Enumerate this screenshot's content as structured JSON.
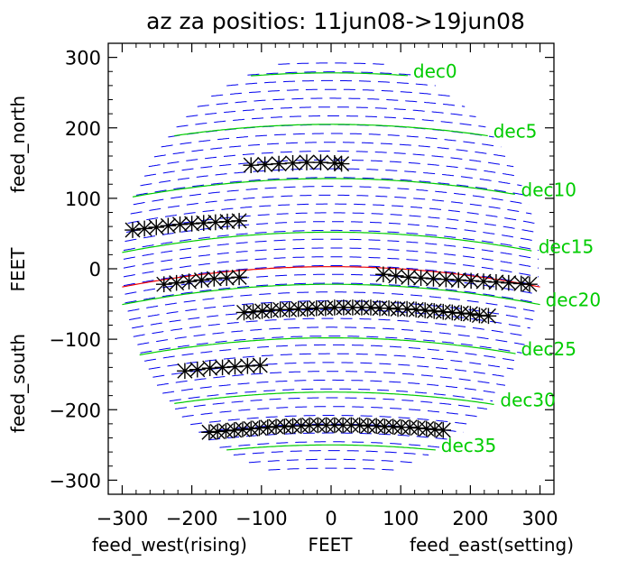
{
  "chart_data": {
    "type": "scatter",
    "title": "az za positios: 11jun08->19jun08",
    "x_axis": {
      "label_left": "feed_west(rising)",
      "label_center": "FEET",
      "label_right": "feed_east(setting)",
      "range": [
        -320,
        320
      ],
      "ticks": [
        -300,
        -200,
        -100,
        0,
        100,
        200,
        300
      ],
      "tick_labels": [
        "−300",
        "−200",
        "−100",
        "0",
        "100",
        "200",
        "300"
      ]
    },
    "y_axis": {
      "label_top": "feed_north",
      "label_center": "FEET",
      "label_bottom": "feed_south",
      "range": [
        -320,
        320
      ],
      "ticks": [
        -300,
        -200,
        -100,
        0,
        100,
        200,
        300
      ],
      "tick_labels": [
        "−300",
        "−200",
        "−100",
        "0",
        "100",
        "200",
        "300"
      ]
    },
    "colors": {
      "declination_lines": "#00cc00",
      "grid_dashes": "#0000ee",
      "zero_line": "#ee0000",
      "markers": "#000000"
    },
    "declination_lines": [
      {
        "label": "dec0",
        "y_center": 278,
        "x_range": [
          -115,
          110
        ]
      },
      {
        "label": "dec5",
        "y_center": 205,
        "x_range": [
          -225,
          225
        ]
      },
      {
        "label": "dec10",
        "y_center": 128,
        "x_range": [
          -285,
          265
        ]
      },
      {
        "label": "dec15",
        "y_center": 52,
        "x_range": [
          -300,
          290
        ]
      },
      {
        "label": "dec20",
        "y_center": -22,
        "x_range": [
          -300,
          300
        ]
      },
      {
        "label": "dec25",
        "y_center": -98,
        "x_range": [
          -275,
          265
        ]
      },
      {
        "label": "dec30",
        "y_center": -175,
        "x_range": [
          -225,
          235
        ]
      },
      {
        "label": "dec35",
        "y_center": -250,
        "x_range": [
          -150,
          150
        ]
      }
    ],
    "zero_line": {
      "y_center": 3,
      "x_range": [
        -300,
        300
      ]
    },
    "series": [
      {
        "track": 1,
        "x": [
          -115,
          -95,
          -75,
          -55,
          -35,
          -15,
          5,
          15
        ],
        "y": [
          147,
          148,
          149,
          150,
          151,
          151,
          150,
          149
        ]
      },
      {
        "track": 2,
        "x": [
          -285,
          -268,
          -251,
          -234,
          -217,
          -200,
          -183,
          -166,
          -149,
          -132
        ],
        "y": [
          55,
          57,
          59,
          61,
          63,
          64,
          65,
          66,
          67,
          68
        ]
      },
      {
        "track": 3,
        "x": [
          -240,
          -222,
          -204,
          -186,
          -168,
          -150,
          -132
        ],
        "y": [
          -22,
          -20,
          -18,
          -16,
          -14,
          -13,
          -12
        ]
      },
      {
        "track": 4,
        "x": [
          75,
          93,
          111,
          129,
          147,
          165,
          183,
          201,
          219,
          237,
          255,
          273,
          285
        ],
        "y": [
          -8,
          -10,
          -12,
          -13,
          -14,
          -15,
          -16,
          -17,
          -18,
          -19,
          -20,
          -21,
          -22
        ]
      },
      {
        "track": 5,
        "x": [
          -125,
          -112,
          -99,
          -86,
          -73,
          -60,
          -47,
          -34,
          -21,
          -8,
          5,
          18,
          31,
          44,
          57,
          70,
          83,
          96,
          109,
          122,
          135,
          148,
          161,
          174,
          187,
          200,
          213,
          226
        ],
        "y": [
          -62,
          -61,
          -60,
          -59,
          -58,
          -58,
          -57,
          -57,
          -56,
          -56,
          -55,
          -55,
          -55,
          -55,
          -55,
          -56,
          -56,
          -57,
          -57,
          -58,
          -59,
          -60,
          -61,
          -62,
          -63,
          -64,
          -66,
          -67
        ]
      },
      {
        "track": 6,
        "x": [
          -210,
          -192,
          -174,
          -156,
          -138,
          -120,
          -102
        ],
        "y": [
          -145,
          -143,
          -141,
          -140,
          -139,
          -138,
          -137
        ]
      },
      {
        "track": 7,
        "x": [
          -175,
          -163,
          -151,
          -139,
          -127,
          -115,
          -103,
          -91,
          -79,
          -67,
          -55,
          -43,
          -31,
          -19,
          -7,
          5,
          17,
          29,
          41,
          53,
          65,
          77,
          89,
          101,
          113,
          125,
          137,
          149,
          161
        ],
        "y": [
          -232,
          -231,
          -230,
          -229,
          -228,
          -227,
          -226,
          -225,
          -224,
          -224,
          -223,
          -223,
          -222,
          -222,
          -222,
          -222,
          -222,
          -222,
          -222,
          -223,
          -223,
          -224,
          -224,
          -225,
          -225,
          -226,
          -227,
          -228,
          -229
        ]
      }
    ]
  }
}
